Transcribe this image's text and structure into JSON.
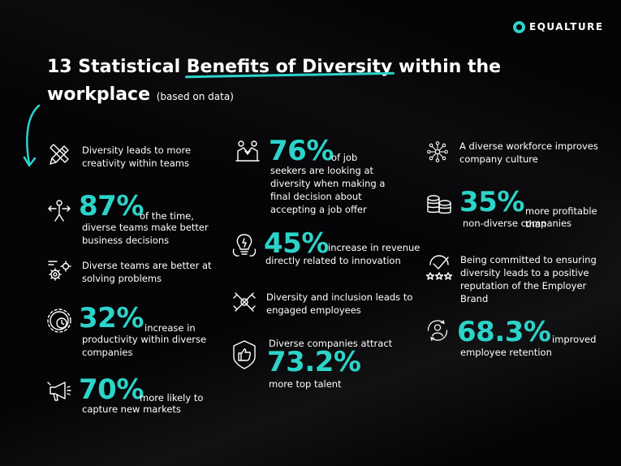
{
  "brand": {
    "logo_text": "EQUALTURE",
    "accent": "#2cd3c9",
    "background": "#050507"
  },
  "title": {
    "prefix": "13 Statistical ",
    "highlight": "Benefits of Diversity",
    "suffix": " within the workplace",
    "note": "(based on data)"
  },
  "stats": [
    {
      "icon": "pencil-icon",
      "text": "Diversity leads to more creativity within teams"
    },
    {
      "icon": "decision-arrows-icon",
      "number": "87%",
      "text_inline": "of the time,",
      "text": "diverse teams make better business decisions"
    },
    {
      "icon": "gears-icon",
      "text": "Diverse teams are better at solving problems"
    },
    {
      "icon": "clock-gear-icon",
      "number": "32%",
      "text_inline": "increase in",
      "text": "productivity within diverse companies"
    },
    {
      "icon": "megaphone-icon",
      "number": "70%",
      "text_inline": "more likely to",
      "text": "capture new markets"
    },
    {
      "icon": "handshake-icon",
      "number": "76%",
      "text_inline": "of job",
      "text": "seekers are looking at diversity when making a final decision about accepting a job offer"
    },
    {
      "icon": "lightbulb-icon",
      "number": "45%",
      "text_inline": "increase in revenue",
      "text": "directly related to innovation"
    },
    {
      "icon": "hands-together-icon",
      "text": "Diversity and inclusion leads to engaged employees"
    },
    {
      "icon": "thumbs-up-badge-icon",
      "text_top": "Diverse companies attract",
      "number": "73.2%",
      "text": "more top talent"
    },
    {
      "icon": "network-people-icon",
      "text": "A diverse workforce improves company culture"
    },
    {
      "icon": "coins-icon",
      "number": "35%",
      "text_inline": "more profitable than",
      "text": "non-diverse companies"
    },
    {
      "icon": "checkmark-stars-icon",
      "text": "Being committed to ensuring diversity leads to a positive reputation of the Employer Brand"
    },
    {
      "icon": "person-cycle-icon",
      "number": "68.3%",
      "text_inline": "improved",
      "text": "employee retention"
    }
  ]
}
